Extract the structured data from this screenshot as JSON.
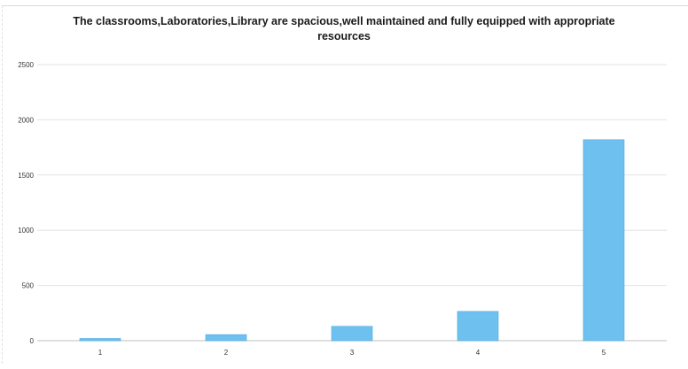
{
  "chart_data": {
    "type": "bar",
    "title_lines": [
      "The classrooms,Laboratories,Library are spacious,well maintained and fully equipped with appropriate",
      "resources"
    ],
    "categories": [
      "1",
      "2",
      "3",
      "4",
      "5"
    ],
    "values": [
      20,
      55,
      130,
      265,
      1820
    ],
    "ylim": [
      0,
      2500
    ],
    "yticks": [
      0,
      500,
      1000,
      1500,
      2000,
      2500
    ],
    "grid": true,
    "legend": "none",
    "colors": {
      "bar": "#6ec1ef",
      "bar_edge": "#4aa8dd",
      "grid": "#e3e3e3",
      "axis": "#bfbfbf"
    }
  }
}
